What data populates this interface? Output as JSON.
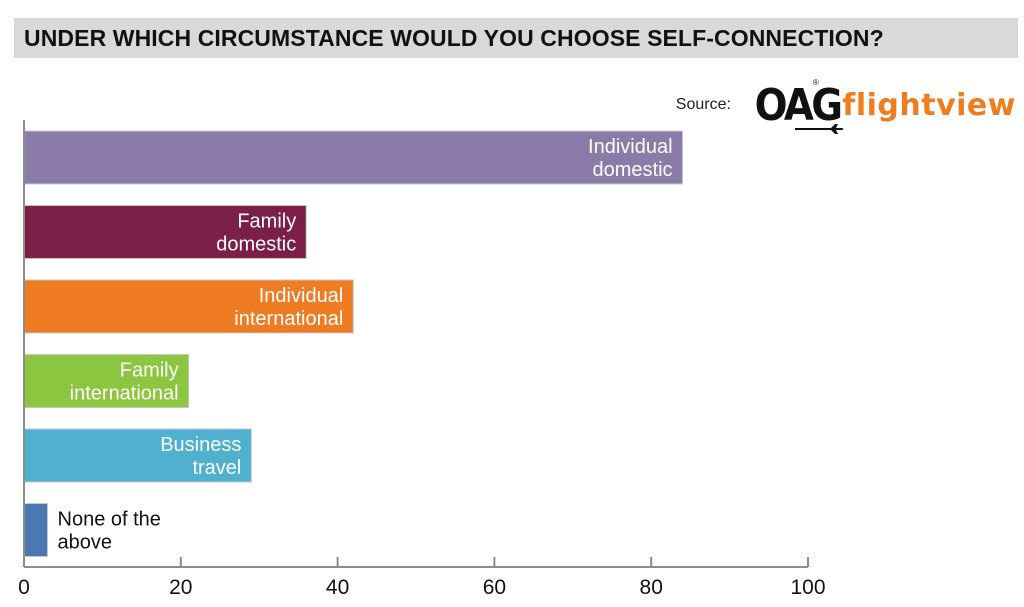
{
  "header": {
    "title": "UNDER WHICH CIRCUMSTANCE WOULD YOU CHOOSE SELF-CONNECTION?"
  },
  "source": {
    "label": "Source:",
    "logo_part1": "OAG",
    "logo_part2": "flightview",
    "logo_mark": "®",
    "logo_icon": "airplane-icon"
  },
  "colors": {
    "title_band": "#d9d9d9",
    "logo_accent": "#f07c1e",
    "axis": "#8c8c8c"
  },
  "chart_data": {
    "type": "bar",
    "orientation": "horizontal",
    "title": "UNDER WHICH CIRCUMSTANCE WOULD YOU CHOOSE SELF-CONNECTION?",
    "xlabel": "",
    "ylabel": "",
    "xlim": [
      0,
      100
    ],
    "xticks": [
      0,
      20,
      40,
      60,
      80,
      100
    ],
    "grid": false,
    "legend": "none",
    "categories": [
      "Individual domestic",
      "Family domestic",
      "Individual international",
      "Family international",
      "Business travel",
      "None of the above"
    ],
    "label_lines": [
      [
        "Individual",
        "domestic"
      ],
      [
        "Family",
        "domestic"
      ],
      [
        "Individual",
        "international"
      ],
      [
        "Family",
        "international"
      ],
      [
        "Business",
        "travel"
      ],
      [
        "None of the",
        "above"
      ]
    ],
    "values": [
      84,
      36,
      42,
      21,
      29,
      3
    ],
    "bar_colors": [
      "#8b7ba8",
      "#7b1f47",
      "#ef7b22",
      "#8cc640",
      "#4fb0cf",
      "#4b78b0"
    ],
    "label_placement": [
      "inside",
      "inside",
      "inside",
      "inside",
      "inside",
      "outside"
    ]
  }
}
